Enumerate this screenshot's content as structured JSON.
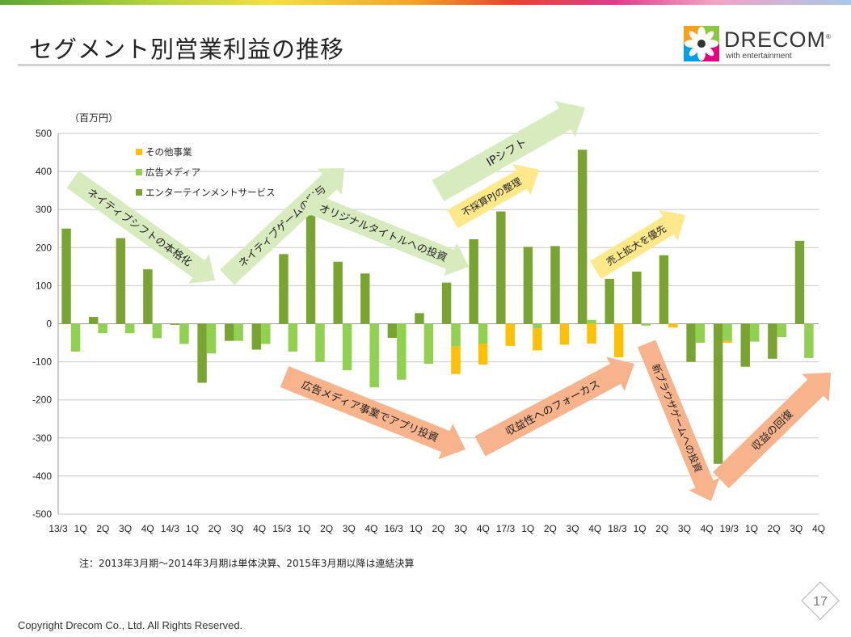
{
  "slide": {
    "title": "セグメント別営業利益の推移",
    "note": "注：2013年3月期～2014年3月期は単体決算、2015年3月期以降は連結決算",
    "copyright": "Copyright Drecom Co., Ltd. All Rights Reserved.",
    "page_number": "17"
  },
  "logo": {
    "name": "DRECOM",
    "registered": "®",
    "tagline": "with entertainment"
  },
  "colors": {
    "entertainment": "#7aa432",
    "ad_media": "#92d050",
    "other": "#ffc000",
    "arrow_green": "#d7ebbf",
    "arrow_orange": "#f6b38c",
    "arrow_yellow": "#fde98a"
  },
  "chart_data": {
    "type": "bar",
    "unit_label": "（百万円）",
    "ylim": [
      -500,
      500
    ],
    "yticks": [
      500,
      400,
      300,
      200,
      100,
      0,
      -100,
      -200,
      -300,
      -400,
      -500
    ],
    "grid": true,
    "stacked": true,
    "legend_position": "top-left",
    "category_labels": [
      "13/3 1Q",
      "2Q",
      "3Q",
      "4Q",
      "14/3 1Q",
      "2Q",
      "3Q",
      "4Q",
      "15/3 1Q",
      "2Q",
      "3Q",
      "4Q",
      "16/3 1Q",
      "2Q",
      "3Q",
      "4Q",
      "17/3 1Q",
      "2Q",
      "3Q",
      "4Q",
      "18/3 1Q",
      "2Q",
      "3Q",
      "4Q",
      "19/3 1Q",
      "2Q",
      "3Q",
      "4Q"
    ],
    "axis_tick_labels": [
      "13/3",
      "1Q",
      "2Q",
      "3Q",
      "4Q",
      "14/3",
      "1Q",
      "2Q",
      "3Q",
      "4Q",
      "15/3",
      "1Q",
      "2Q",
      "3Q",
      "4Q",
      "16/3",
      "1Q",
      "2Q",
      "3Q",
      "4Q",
      "17/3",
      "1Q",
      "2Q",
      "3Q",
      "4Q",
      "18/3",
      "1Q",
      "2Q",
      "3Q",
      "4Q",
      "19/3",
      "1Q",
      "2Q",
      "3Q",
      "4Q"
    ],
    "series": [
      {
        "name": "エンターテインメントサービス",
        "values": [
          250,
          18,
          225,
          143,
          -3,
          -155,
          -45,
          -68,
          183,
          285,
          163,
          132,
          -37,
          28,
          108,
          222,
          295,
          202,
          204,
          457,
          118,
          137,
          180,
          -100,
          -368,
          -113,
          -92,
          218
        ]
      },
      {
        "name": "広告メディア",
        "values": [
          -73,
          -25,
          -25,
          -38,
          -53,
          -78,
          -45,
          -53,
          -73,
          -100,
          -122,
          -167,
          -147,
          -105,
          -60,
          -52,
          0,
          -12,
          0,
          10,
          0,
          -5,
          0,
          -50,
          -45,
          -47,
          -35,
          -90
        ]
      },
      {
        "name": "その他事業",
        "values": [
          0,
          0,
          0,
          0,
          0,
          0,
          0,
          0,
          0,
          0,
          0,
          0,
          0,
          0,
          -72,
          -55,
          -58,
          -58,
          -55,
          -52,
          -88,
          0,
          -10,
          0,
          -5,
          0,
          0,
          0
        ]
      }
    ],
    "annotations": [
      {
        "text": "ネイティブシフトの本格化",
        "trend": "down",
        "color": "green"
      },
      {
        "text": "ネイティブゲームの寄与",
        "trend": "up",
        "color": "green"
      },
      {
        "text": "オリジナルタイトルへの投資",
        "trend": "down",
        "color": "green"
      },
      {
        "text": "IPシフト",
        "trend": "up",
        "color": "green"
      },
      {
        "text": "不採算PJの整理",
        "trend": "up",
        "color": "yellow"
      },
      {
        "text": "売上拡大を優先",
        "trend": "up",
        "color": "yellow"
      },
      {
        "text": "広告メディア事業でアプリ投資",
        "trend": "down",
        "color": "orange"
      },
      {
        "text": "収益性へのフォーカス",
        "trend": "up",
        "color": "orange"
      },
      {
        "text": "新ブラウザゲームへの投資",
        "trend": "down",
        "color": "orange"
      },
      {
        "text": "収益の回復",
        "trend": "up",
        "color": "orange"
      }
    ]
  }
}
